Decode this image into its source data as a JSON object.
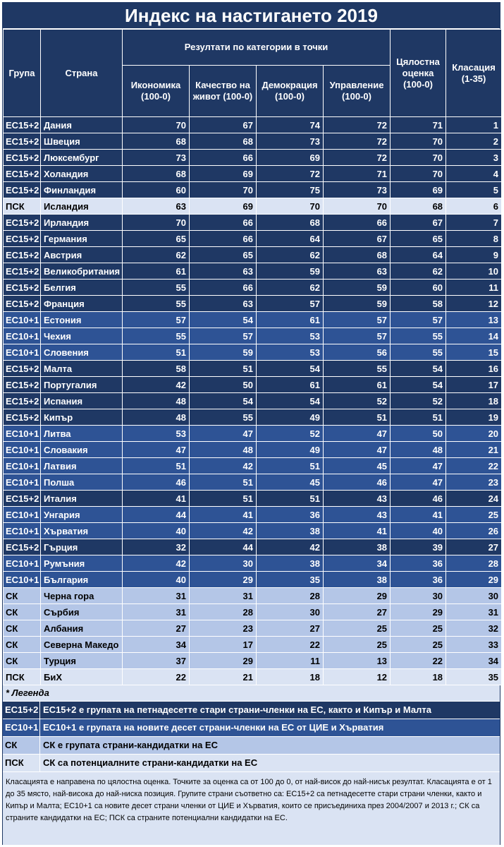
{
  "title": "Индекс на настигането 2019",
  "header": {
    "group": "Група",
    "country": "Страна",
    "category_results": "Резултати по категории в точки",
    "economy": "Икономика (100-0)",
    "quality_of_life": "Качество на живот (100-0)",
    "democracy": "Демокрация (100-0)",
    "governance": "Управление (100-0)",
    "overall": "Цялостна оценка (100-0)",
    "rank": "Класация (1-35)"
  },
  "rows": [
    {
      "group": "ЕС15+2",
      "country": "Дания",
      "economy": "70",
      "quality": "67",
      "democracy": "74",
      "governance": "72",
      "overall": "71",
      "rank": "1"
    },
    {
      "group": "ЕС15+2",
      "country": "Швеция",
      "economy": "68",
      "quality": "68",
      "democracy": "73",
      "governance": "72",
      "overall": "70",
      "rank": "2"
    },
    {
      "group": "ЕС15+2",
      "country": "Люксембург",
      "economy": "73",
      "quality": "66",
      "democracy": "69",
      "governance": "72",
      "overall": "70",
      "rank": "3"
    },
    {
      "group": "ЕС15+2",
      "country": "Холандия",
      "economy": "68",
      "quality": "69",
      "democracy": "72",
      "governance": "71",
      "overall": "70",
      "rank": "4"
    },
    {
      "group": "ЕС15+2",
      "country": "Финландия",
      "economy": "60",
      "quality": "70",
      "democracy": "75",
      "governance": "73",
      "overall": "69",
      "rank": "5"
    },
    {
      "group": "ПСК",
      "country": "Исландия",
      "economy": "63",
      "quality": "69",
      "democracy": "70",
      "governance": "70",
      "overall": "68",
      "rank": "6"
    },
    {
      "group": "ЕС15+2",
      "country": "Ирландия",
      "economy": "70",
      "quality": "66",
      "democracy": "68",
      "governance": "66",
      "overall": "67",
      "rank": "7"
    },
    {
      "group": "ЕС15+2",
      "country": "Германия",
      "economy": "65",
      "quality": "66",
      "democracy": "64",
      "governance": "67",
      "overall": "65",
      "rank": "8"
    },
    {
      "group": "ЕС15+2",
      "country": "Австрия",
      "economy": "62",
      "quality": "65",
      "democracy": "62",
      "governance": "68",
      "overall": "64",
      "rank": "9"
    },
    {
      "group": "ЕС15+2",
      "country": "Великобритания",
      "economy": "61",
      "quality": "63",
      "democracy": "59",
      "governance": "63",
      "overall": "62",
      "rank": "10"
    },
    {
      "group": "ЕС15+2",
      "country": "Белгия",
      "economy": "55",
      "quality": "66",
      "democracy": "62",
      "governance": "59",
      "overall": "60",
      "rank": "11"
    },
    {
      "group": "ЕС15+2",
      "country": "Франция",
      "economy": "55",
      "quality": "63",
      "democracy": "57",
      "governance": "59",
      "overall": "58",
      "rank": "12"
    },
    {
      "group": "ЕС10+1",
      "country": "Естония",
      "economy": "57",
      "quality": "54",
      "democracy": "61",
      "governance": "57",
      "overall": "57",
      "rank": "13"
    },
    {
      "group": "ЕС10+1",
      "country": "Чехия",
      "economy": "55",
      "quality": "57",
      "democracy": "53",
      "governance": "57",
      "overall": "55",
      "rank": "14"
    },
    {
      "group": "ЕС10+1",
      "country": " Словения",
      "economy": "51",
      "quality": "59",
      "democracy": "53",
      "governance": "56",
      "overall": "55",
      "rank": "15"
    },
    {
      "group": "ЕС15+2",
      "country": "Малта",
      "economy": "58",
      "quality": "51",
      "democracy": "54",
      "governance": "55",
      "overall": "54",
      "rank": "16"
    },
    {
      "group": "ЕС15+2",
      "country": "Португалия",
      "economy": "42",
      "quality": "50",
      "democracy": "61",
      "governance": "61",
      "overall": "54",
      "rank": "17"
    },
    {
      "group": "ЕС15+2",
      "country": "Испания",
      "economy": "48",
      "quality": "54",
      "democracy": "54",
      "governance": "52",
      "overall": "52",
      "rank": "18"
    },
    {
      "group": "ЕС15+2",
      "country": "Кипър",
      "economy": "48",
      "quality": "55",
      "democracy": "49",
      "governance": "51",
      "overall": "51",
      "rank": "19"
    },
    {
      "group": "ЕС10+1",
      "country": "Литва",
      "economy": "53",
      "quality": "47",
      "democracy": "52",
      "governance": "47",
      "overall": "50",
      "rank": "20"
    },
    {
      "group": "ЕС10+1",
      "country": "Словакия",
      "economy": "47",
      "quality": "48",
      "democracy": "49",
      "governance": "47",
      "overall": "48",
      "rank": "21"
    },
    {
      "group": "ЕС10+1",
      "country": "Латвия",
      "economy": "51",
      "quality": "42",
      "democracy": "51",
      "governance": "45",
      "overall": "47",
      "rank": "22"
    },
    {
      "group": "ЕС10+1",
      "country": "Полша",
      "economy": "46",
      "quality": "51",
      "democracy": "45",
      "governance": "46",
      "overall": "47",
      "rank": "23"
    },
    {
      "group": "ЕС15+2",
      "country": "Италия",
      "economy": "41",
      "quality": "51",
      "democracy": "51",
      "governance": "43",
      "overall": "46",
      "rank": "24"
    },
    {
      "group": "ЕС10+1",
      "country": "Унгария",
      "economy": "44",
      "quality": "41",
      "democracy": "36",
      "governance": "43",
      "overall": "41",
      "rank": "25"
    },
    {
      "group": "ЕС10+1",
      "country": "Хърватия",
      "economy": "40",
      "quality": "42",
      "democracy": "38",
      "governance": "41",
      "overall": "40",
      "rank": "26"
    },
    {
      "group": "ЕС15+2",
      "country": "Гърция",
      "economy": "32",
      "quality": "44",
      "democracy": "42",
      "governance": "38",
      "overall": "39",
      "rank": "27"
    },
    {
      "group": "ЕС10+1",
      "country": "Румъния",
      "economy": "42",
      "quality": "30",
      "democracy": "38",
      "governance": "34",
      "overall": "36",
      "rank": "28"
    },
    {
      "group": "ЕС10+1",
      "country": "България",
      "economy": "40",
      "quality": "29",
      "democracy": "35",
      "governance": "38",
      "overall": "36",
      "rank": "29"
    },
    {
      "group": "СК",
      "country": "Черна гора",
      "economy": "31",
      "quality": "31",
      "democracy": "28",
      "governance": "29",
      "overall": "30",
      "rank": "30"
    },
    {
      "group": "СК",
      "country": "Сърбия",
      "economy": "31",
      "quality": "28",
      "democracy": "30",
      "governance": "27",
      "overall": "29",
      "rank": "31"
    },
    {
      "group": "СК",
      "country": "Албания",
      "economy": "27",
      "quality": "23",
      "democracy": "27",
      "governance": "25",
      "overall": "25",
      "rank": "32"
    },
    {
      "group": "СК",
      "country": "Северна Македо",
      "economy": "34",
      "quality": "17",
      "democracy": "22",
      "governance": "25",
      "overall": "25",
      "rank": "33"
    },
    {
      "group": "СК",
      "country": "Турция",
      "economy": "37",
      "quality": "29",
      "democracy": "11",
      "governance": "13",
      "overall": "22",
      "rank": "34"
    },
    {
      "group": "ПСК",
      "country": "БиХ",
      "economy": "22",
      "quality": "21",
      "democracy": "18",
      "governance": "12",
      "overall": "18",
      "rank": "35"
    }
  ],
  "legend": {
    "title": "* Легенда",
    "items": [
      {
        "group": "ЕС15+2",
        "text": "ЕС15+2 е групата на петнадесетте стари страни-членки на ЕС, както и Кипър и Малта"
      },
      {
        "group": "ЕС10+1",
        "text": "ЕС10+1 е групата на новите десет страни-членки на ЕС от ЦИЕ и Хърватия"
      },
      {
        "group": "СК",
        "text": "СК е групата страни-кандидатки на ЕС"
      },
      {
        "group": "ПСК",
        "text": "СК са потенциалните страни-кандидатки на ЕС"
      }
    ]
  },
  "note": "Класацията е направена по цялостна оценка. Точките за оценка са от 100 до 0, от най-висок до най-нисък резултат. Класацията е от 1 до 35 място, най-висока до най-ниска позиция. Групите страни съответно са: ЕС15+2 са петнадесетте стари страни членки, както и Кипър и Малта; ЕС10+1 са новите десет страни членки от ЦИЕ и Хърватия, които се присъединиха през 2004/2007 и 2013 г.; СК са страните кандидатки на ЕС; ПСК са страните потенциални кандидатки на ЕС.",
  "colors": {
    "eu15": "#1f3864",
    "eu10": "#2e5395",
    "sk": "#b4c6e7",
    "psk": "#dae3f3"
  }
}
